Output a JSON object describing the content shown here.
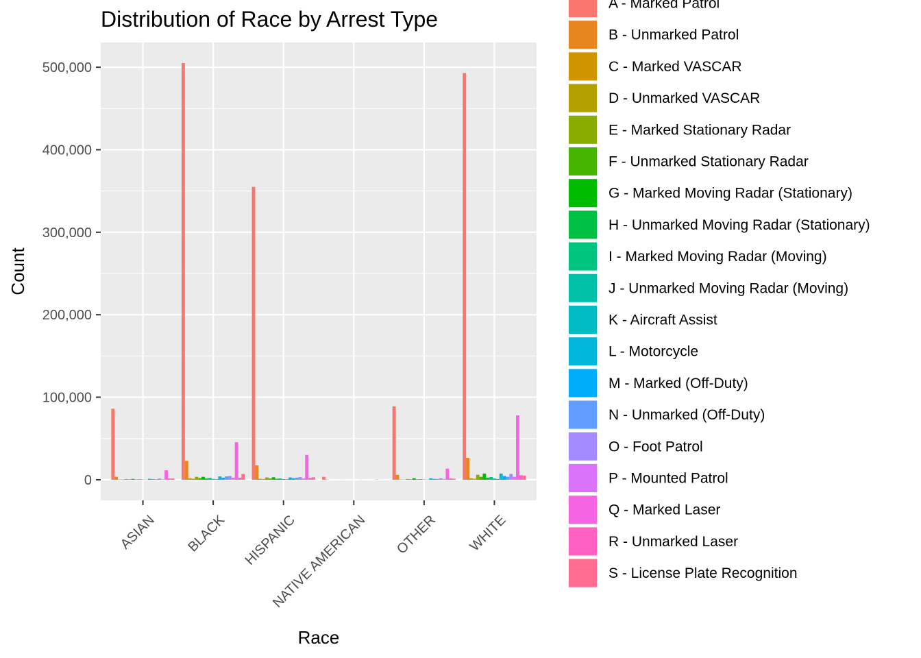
{
  "chart_data": {
    "type": "bar",
    "title": "Distribution of Race by Arrest Type",
    "xlabel": "Race",
    "ylabel": "Count",
    "ylim": [
      -25000,
      530000
    ],
    "y_ticks": [
      0,
      100000,
      200000,
      300000,
      400000,
      500000
    ],
    "y_tick_labels": [
      "0",
      "100,000",
      "200,000",
      "300,000",
      "400,000",
      "500,000"
    ],
    "grid": true,
    "legend_position": "right",
    "categories": [
      "ASIAN",
      "BLACK",
      "HISPANIC",
      "NATIVE AMERICAN",
      "OTHER",
      "WHITE"
    ],
    "series": [
      {
        "name": "A - Marked Patrol",
        "color": "#F8766D",
        "values": [
          86000,
          505000,
          355000,
          3500,
          89000,
          493000
        ]
      },
      {
        "name": "B - Unmarked Patrol",
        "color": "#E7851E",
        "values": [
          3500,
          23000,
          17500,
          300,
          6000,
          26500
        ]
      },
      {
        "name": "C - Marked VASCAR",
        "color": "#D09400",
        "values": [
          400,
          1800,
          1200,
          30,
          400,
          1800
        ]
      },
      {
        "name": "D - Unmarked VASCAR",
        "color": "#B2A100",
        "values": [
          300,
          1200,
          900,
          20,
          300,
          1200
        ]
      },
      {
        "name": "E - Marked Stationary Radar",
        "color": "#89AC00",
        "values": [
          800,
          3500,
          2800,
          60,
          900,
          6000
        ]
      },
      {
        "name": "F - Unmarked Stationary Radar",
        "color": "#45B500",
        "values": [
          500,
          2000,
          1500,
          40,
          600,
          3500
        ]
      },
      {
        "name": "G - Marked Moving Radar (Stationary)",
        "color": "#00BC00",
        "values": [
          1000,
          3500,
          3000,
          80,
          1800,
          7500
        ]
      },
      {
        "name": "H - Unmarked Moving Radar (Stationary)",
        "color": "#00C143",
        "values": [
          400,
          1500,
          1200,
          30,
          500,
          2500
        ]
      },
      {
        "name": "I - Marked Moving Radar (Moving)",
        "color": "#00C380",
        "values": [
          600,
          2200,
          1600,
          40,
          700,
          3200
        ]
      },
      {
        "name": "J - Unmarked Moving Radar (Moving)",
        "color": "#00C1A7",
        "values": [
          300,
          1000,
          800,
          20,
          400,
          1500
        ]
      },
      {
        "name": "K - Aircraft Assist",
        "color": "#00BDC4",
        "values": [
          200,
          700,
          600,
          15,
          200,
          900
        ]
      },
      {
        "name": "L - Motorcycle",
        "color": "#00B7DA",
        "values": [
          1200,
          4000,
          2800,
          90,
          1800,
          7500
        ]
      },
      {
        "name": "M - Marked (Off-Duty)",
        "color": "#00ACFC",
        "values": [
          800,
          2500,
          1800,
          50,
          1000,
          4500
        ]
      },
      {
        "name": "N - Unmarked (Off-Duty)",
        "color": "#619CFF",
        "values": [
          600,
          4000,
          2500,
          40,
          900,
          3500
        ]
      },
      {
        "name": "O - Foot Patrol",
        "color": "#A58AFF",
        "values": [
          1500,
          4500,
          3200,
          60,
          1800,
          7000
        ]
      },
      {
        "name": "P - Mounted Patrol",
        "color": "#DB72FB",
        "values": [
          600,
          2500,
          1500,
          30,
          900,
          3500
        ]
      },
      {
        "name": "Q - Marked Laser",
        "color": "#F564E3",
        "values": [
          11500,
          45500,
          30000,
          300,
          13500,
          78000
        ]
      },
      {
        "name": "R - Unmarked Laser",
        "color": "#FF61C3",
        "values": [
          1500,
          2500,
          2200,
          60,
          1500,
          5500
        ]
      },
      {
        "name": "S - License Plate Recognition",
        "color": "#FF6C91",
        "values": [
          1500,
          7000,
          3000,
          60,
          1200,
          5000
        ]
      }
    ]
  }
}
